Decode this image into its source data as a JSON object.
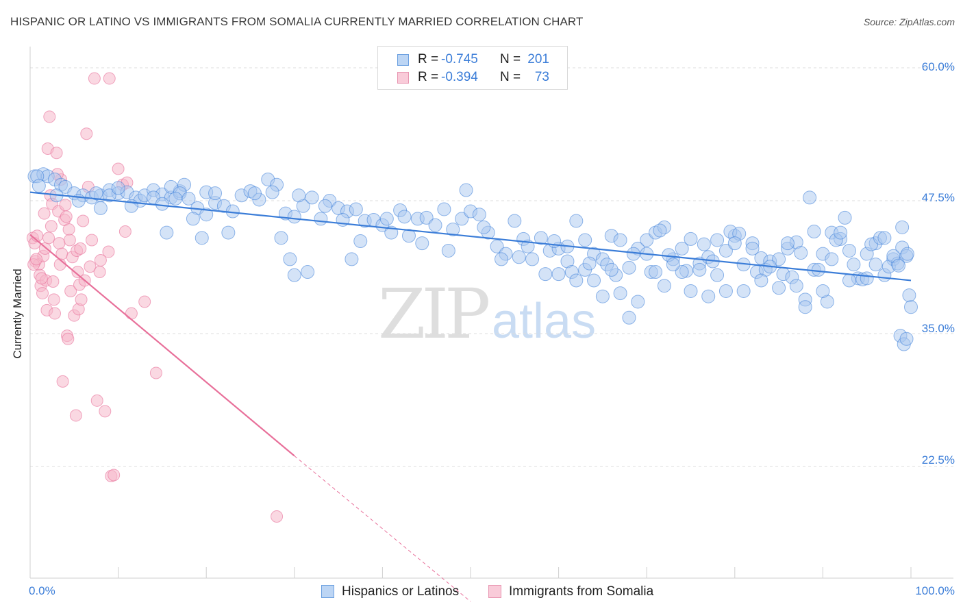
{
  "title": "HISPANIC OR LATINO VS IMMIGRANTS FROM SOMALIA CURRENTLY MARRIED CORRELATION CHART",
  "source": "Source: ZipAtlas.com",
  "watermark": {
    "zip": "ZIP",
    "atlas": "atlas"
  },
  "legend": {
    "rows": [
      {
        "r_label": "R =",
        "r_value": "-0.745",
        "n_label": "N =",
        "n_value": "201"
      },
      {
        "r_label": "R =",
        "r_value": "-0.394",
        "n_label": "N =",
        "n_value": "73"
      }
    ]
  },
  "bottom_legend": [
    "Hispanics or Latinos",
    "Immigrants from Somalia"
  ],
  "colors": {
    "blue": "#3b7dd8",
    "blue_fill": "#a9c8f0",
    "pink": "#e8709a",
    "pink_fill": "#f6b8cb",
    "grid": "#dcdcdc"
  },
  "chart_data": {
    "type": "scatter",
    "title": "HISPANIC OR LATINO VS IMMIGRANTS FROM SOMALIA CURRENTLY MARRIED CORRELATION CHART",
    "xlabel": "",
    "ylabel": "Currently Married",
    "xlim": [
      0,
      100
    ],
    "ylim": [
      12,
      62
    ],
    "x_tick_labels": [
      "0.0%",
      "100.0%"
    ],
    "y_tick_labels": [
      "60.0%",
      "47.5%",
      "35.0%",
      "22.5%"
    ],
    "y_ticks": [
      60.0,
      47.5,
      35.0,
      22.5
    ],
    "grid": true,
    "legend_position": "top-center",
    "series": [
      {
        "name": "Hispanics or Latinos",
        "r": -0.745,
        "n": 201,
        "trend": {
          "x0": 0,
          "y0": 48.3,
          "x1": 100,
          "y1": 40.0
        },
        "points": [
          [
            0.5,
            49.8
          ],
          [
            1.5,
            50.0
          ],
          [
            2,
            49.8
          ],
          [
            2.8,
            49.5
          ],
          [
            3.5,
            49.0
          ],
          [
            4,
            48.8
          ],
          [
            5,
            48.2
          ],
          [
            6,
            48.0
          ],
          [
            7,
            47.8
          ],
          [
            8,
            48.0
          ],
          [
            9,
            48.5
          ],
          [
            10,
            48.2
          ],
          [
            11,
            48.3
          ],
          [
            12,
            47.8
          ],
          [
            12.5,
            47.5
          ],
          [
            13,
            48.0
          ],
          [
            14,
            48.5
          ],
          [
            15,
            48.1
          ],
          [
            16,
            47.8
          ],
          [
            17,
            48.4
          ],
          [
            17.5,
            49.0
          ],
          [
            8,
            46.8
          ],
          [
            9,
            48.0
          ],
          [
            10,
            48.7
          ],
          [
            14,
            47.8
          ],
          [
            15,
            47.2
          ],
          [
            16,
            48.8
          ],
          [
            17,
            48.2
          ],
          [
            18,
            47.7
          ],
          [
            19,
            46.8
          ],
          [
            20,
            48.3
          ],
          [
            21,
            47.3
          ],
          [
            22,
            47.0
          ],
          [
            20,
            46.2
          ],
          [
            21,
            48.2
          ],
          [
            23,
            46.5
          ],
          [
            24,
            48.0
          ],
          [
            25,
            48.4
          ],
          [
            26,
            47.6
          ],
          [
            27,
            49.5
          ],
          [
            28,
            49.0
          ],
          [
            29,
            46.3
          ],
          [
            30,
            46.0
          ],
          [
            31,
            47.0
          ],
          [
            32,
            47.8
          ],
          [
            33,
            45.8
          ],
          [
            34,
            47.5
          ],
          [
            35,
            46.8
          ],
          [
            36,
            46.5
          ],
          [
            37,
            46.7
          ],
          [
            38,
            45.6
          ],
          [
            39,
            45.7
          ],
          [
            40,
            45.2
          ],
          [
            41,
            44.5
          ],
          [
            42,
            46.6
          ],
          [
            43,
            44.2
          ],
          [
            44,
            45.8
          ],
          [
            45,
            45.9
          ],
          [
            46,
            45.2
          ],
          [
            47,
            46.7
          ],
          [
            48,
            44.8
          ],
          [
            49,
            45.8
          ],
          [
            50,
            46.5
          ],
          [
            51,
            46.2
          ],
          [
            52,
            44.5
          ],
          [
            53,
            43.2
          ],
          [
            54,
            42.5
          ],
          [
            55,
            45.6
          ],
          [
            56,
            43.9
          ],
          [
            57,
            42.0
          ],
          [
            58,
            44.0
          ],
          [
            59,
            42.8
          ],
          [
            60,
            43.0
          ],
          [
            61,
            41.8
          ],
          [
            62,
            45.6
          ],
          [
            63,
            41.0
          ],
          [
            64,
            42.5
          ],
          [
            65,
            42.0
          ],
          [
            66,
            44.2
          ],
          [
            67,
            43.8
          ],
          [
            68,
            41.2
          ],
          [
            69,
            43.0
          ],
          [
            70,
            43.8
          ],
          [
            71,
            44.5
          ],
          [
            72,
            45.0
          ],
          [
            73,
            42.0
          ],
          [
            74,
            43.0
          ],
          [
            75,
            43.9
          ],
          [
            76,
            41.6
          ],
          [
            77,
            42.2
          ],
          [
            78,
            43.8
          ],
          [
            79,
            42.8
          ],
          [
            80,
            44.2
          ],
          [
            81,
            41.5
          ],
          [
            82,
            43.5
          ],
          [
            83,
            42.1
          ],
          [
            84,
            41.8
          ],
          [
            85,
            42.0
          ],
          [
            86,
            43.0
          ],
          [
            87,
            43.6
          ],
          [
            88,
            38.2
          ],
          [
            89,
            41.0
          ],
          [
            90,
            42.5
          ],
          [
            91,
            44.5
          ],
          [
            92,
            43.9
          ],
          [
            93,
            42.8
          ],
          [
            94,
            40.2
          ],
          [
            95,
            42.5
          ],
          [
            96,
            43.5
          ],
          [
            97,
            40.5
          ],
          [
            98,
            42.0
          ],
          [
            99,
            43.1
          ],
          [
            0.8,
            49.8
          ],
          [
            1,
            48.9
          ],
          [
            3,
            48.0
          ],
          [
            5.5,
            47.5
          ],
          [
            7.5,
            48.2
          ],
          [
            11.5,
            47.0
          ],
          [
            16.5,
            47.7
          ],
          [
            18.5,
            45.8
          ],
          [
            22.5,
            44.5
          ],
          [
            25.5,
            48.2
          ],
          [
            27.5,
            48.3
          ],
          [
            30.5,
            48.0
          ],
          [
            33.5,
            47.0
          ],
          [
            35.5,
            45.7
          ],
          [
            36.5,
            42.0
          ],
          [
            37.5,
            43.7
          ],
          [
            40.5,
            45.8
          ],
          [
            42.5,
            46.0
          ],
          [
            44.5,
            43.5
          ],
          [
            47.5,
            42.8
          ],
          [
            49.5,
            48.5
          ],
          [
            51.5,
            45.0
          ],
          [
            53.5,
            42.0
          ],
          [
            55.5,
            42.2
          ],
          [
            56.5,
            43.2
          ],
          [
            58.5,
            40.6
          ],
          [
            59.5,
            43.7
          ],
          [
            61.5,
            40.8
          ],
          [
            63.5,
            41.6
          ],
          [
            65.5,
            41.5
          ],
          [
            66.5,
            40.5
          ],
          [
            68.5,
            42.5
          ],
          [
            70.5,
            40.8
          ],
          [
            71.5,
            44.7
          ],
          [
            72.5,
            42.4
          ],
          [
            74.5,
            40.9
          ],
          [
            76.5,
            43.4
          ],
          [
            77.5,
            41.8
          ],
          [
            79.5,
            44.6
          ],
          [
            80.5,
            44.4
          ],
          [
            82.5,
            40.8
          ],
          [
            83.5,
            41.0
          ],
          [
            85.5,
            40.6
          ],
          [
            86.5,
            40.3
          ],
          [
            87.5,
            42.6
          ],
          [
            88.5,
            47.8
          ],
          [
            89.5,
            41.0
          ],
          [
            90.5,
            38.0
          ],
          [
            91.5,
            43.8
          ],
          [
            92.5,
            45.9
          ],
          [
            93.5,
            41.5
          ],
          [
            94.5,
            40.1
          ],
          [
            95.5,
            43.4
          ],
          [
            96.5,
            44.0
          ],
          [
            97.5,
            41.3
          ],
          [
            98.5,
            41.6
          ],
          [
            99.5,
            42.3
          ],
          [
            99,
            45.0
          ],
          [
            98,
            42.3
          ],
          [
            97,
            44.0
          ],
          [
            96,
            41.5
          ],
          [
            95,
            40.2
          ],
          [
            93,
            40.0
          ],
          [
            92,
            44.5
          ],
          [
            91,
            42.0
          ],
          [
            90,
            39.0
          ],
          [
            89,
            44.6
          ],
          [
            88,
            37.5
          ],
          [
            87,
            39.5
          ],
          [
            86,
            43.5
          ],
          [
            85,
            39.3
          ],
          [
            84,
            41.3
          ],
          [
            83,
            40.0
          ],
          [
            82,
            43.0
          ],
          [
            81,
            39.0
          ],
          [
            80,
            43.5
          ],
          [
            79,
            39.0
          ],
          [
            78,
            40.5
          ],
          [
            77,
            38.5
          ],
          [
            76,
            41.0
          ],
          [
            75,
            39.0
          ],
          [
            74,
            40.8
          ],
          [
            73,
            41.5
          ],
          [
            72,
            39.5
          ],
          [
            71,
            40.8
          ],
          [
            70,
            42.5
          ],
          [
            69,
            38.0
          ],
          [
            68,
            36.5
          ],
          [
            67,
            38.8
          ],
          [
            66,
            41.0
          ],
          [
            65,
            38.5
          ],
          [
            64,
            40.0
          ],
          [
            63,
            43.8
          ],
          [
            62,
            40.0
          ],
          [
            61,
            43.2
          ],
          [
            60,
            40.6
          ],
          [
            98.8,
            34.8
          ],
          [
            99.2,
            34.0
          ],
          [
            99.5,
            34.5
          ],
          [
            99.8,
            38.6
          ],
          [
            100,
            37.5
          ],
          [
            98.6,
            41.4
          ],
          [
            99.6,
            42.5
          ],
          [
            15.5,
            44.5
          ],
          [
            19.5,
            44.0
          ],
          [
            28.5,
            44.0
          ],
          [
            29.5,
            42.0
          ],
          [
            30,
            40.5
          ],
          [
            31.5,
            40.8
          ]
        ]
      },
      {
        "name": "Immigrants from Somalia",
        "r": -0.394,
        "n": 73,
        "trend": {
          "x0": 0,
          "y0": 44.3,
          "x1": 30,
          "y1": 23.5,
          "dash_to_x": 50,
          "dash_to_y": 9.8
        },
        "points": [
          [
            0.3,
            44.0
          ],
          [
            0.5,
            43.5
          ],
          [
            0.6,
            41.8
          ],
          [
            0.8,
            44.2
          ],
          [
            1,
            41.5
          ],
          [
            1.1,
            40.5
          ],
          [
            1.2,
            39.5
          ],
          [
            1.4,
            38.8
          ],
          [
            1.5,
            42.3
          ],
          [
            1.6,
            46.3
          ],
          [
            1.7,
            43.0
          ],
          [
            1.8,
            40.0
          ],
          [
            1.9,
            37.2
          ],
          [
            2,
            52.4
          ],
          [
            2.2,
            55.4
          ],
          [
            2.3,
            48.0
          ],
          [
            2.4,
            45.1
          ],
          [
            2.5,
            47.2
          ],
          [
            2.6,
            39.9
          ],
          [
            2.7,
            38.2
          ],
          [
            2.8,
            36.9
          ],
          [
            3,
            52.0
          ],
          [
            3.2,
            46.5
          ],
          [
            3.3,
            43.5
          ],
          [
            3.4,
            41.5
          ],
          [
            3.5,
            49.5
          ],
          [
            3.6,
            42.5
          ],
          [
            3.7,
            30.5
          ],
          [
            3.9,
            45.7
          ],
          [
            4,
            47.1
          ],
          [
            4.2,
            34.8
          ],
          [
            4.3,
            34.5
          ],
          [
            4.4,
            44.8
          ],
          [
            4.5,
            43.8
          ],
          [
            4.6,
            39.0
          ],
          [
            4.8,
            42.2
          ],
          [
            5,
            36.7
          ],
          [
            5.2,
            27.3
          ],
          [
            5.3,
            42.8
          ],
          [
            5.4,
            40.8
          ],
          [
            5.5,
            37.3
          ],
          [
            5.6,
            39.6
          ],
          [
            5.8,
            38.2
          ],
          [
            6,
            45.6
          ],
          [
            6.2,
            40.0
          ],
          [
            6.4,
            53.8
          ],
          [
            6.6,
            48.8
          ],
          [
            6.8,
            41.3
          ],
          [
            7,
            43.8
          ],
          [
            7.3,
            59.0
          ],
          [
            7.6,
            28.7
          ],
          [
            8,
            41.9
          ],
          [
            8.5,
            27.7
          ],
          [
            8.9,
            42.7
          ],
          [
            9,
            59.0
          ],
          [
            9.2,
            21.6
          ],
          [
            9.5,
            21.7
          ],
          [
            10,
            50.5
          ],
          [
            10.5,
            49.0
          ],
          [
            11,
            49.2
          ],
          [
            11.5,
            36.9
          ],
          [
            13,
            38.0
          ],
          [
            14.3,
            31.3
          ],
          [
            28,
            17.8
          ],
          [
            0.4,
            41.5
          ],
          [
            0.7,
            42.0
          ],
          [
            1.3,
            40.2
          ],
          [
            2.1,
            44.0
          ],
          [
            3.1,
            50.0
          ],
          [
            4.1,
            46.0
          ],
          [
            5.7,
            43.0
          ],
          [
            7.9,
            40.8
          ],
          [
            10.8,
            44.6
          ]
        ]
      }
    ]
  }
}
